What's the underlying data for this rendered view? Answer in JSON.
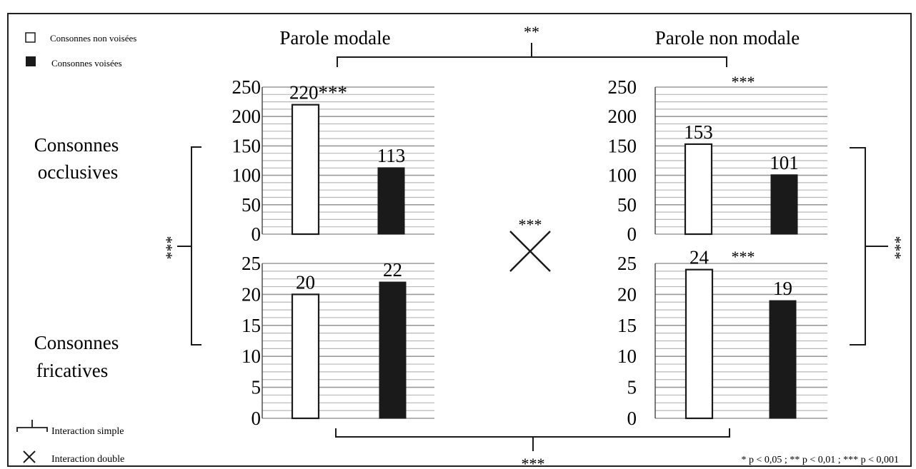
{
  "legend": {
    "unvoiced": "Consonnes non voisées",
    "voiced": "Consonnes voisées",
    "interaction_simple": "Interaction simple",
    "interaction_double": "Interaction double"
  },
  "headers": {
    "modal": "Parole modale",
    "nonmodal": "Parole non modale"
  },
  "row_labels": {
    "occlusive_line1": "Consonnes",
    "occlusive_line2": "occlusives",
    "fricative_line1": "Consonnes",
    "fricative_line2": "fricatives"
  },
  "significance": {
    "top_bracket": "**",
    "bottom_bracket": "***",
    "left_bracket": "***",
    "right_bracket": "***",
    "center_cross": "***",
    "footnote": "* p < 0,05 ; ** p < 0,01 ; *** p < 0,001"
  },
  "colors": {
    "unvoiced_fill": "#ffffff",
    "voiced_fill": "#1a1a1a",
    "grid": "#b8b8b8",
    "frame": "#222222"
  },
  "chart_data": [
    {
      "type": "bar",
      "id": "modal-occlusive",
      "categories": [
        "Consonnes non voisées",
        "Consonnes voisées"
      ],
      "values": [
        220,
        113
      ],
      "labels": [
        "220***",
        "113"
      ],
      "yticks": [
        "0",
        "50",
        "100",
        "150",
        "200",
        "250"
      ],
      "ylim": [
        0,
        250
      ]
    },
    {
      "type": "bar",
      "id": "modal-fricative",
      "categories": [
        "Consonnes non voisées",
        "Consonnes voisées"
      ],
      "values": [
        20,
        22
      ],
      "labels": [
        "20",
        "22"
      ],
      "yticks": [
        "0",
        "5",
        "10",
        "15",
        "20",
        "25"
      ],
      "ylim": [
        0,
        25
      ]
    },
    {
      "type": "bar",
      "id": "nonmodal-occlusive",
      "categories": [
        "Consonnes non voisées",
        "Consonnes voisées"
      ],
      "values": [
        153,
        101
      ],
      "labels": [
        "153",
        "101"
      ],
      "significance": "***",
      "yticks": [
        "0",
        "50",
        "100",
        "150",
        "200",
        "250"
      ],
      "ylim": [
        0,
        250
      ]
    },
    {
      "type": "bar",
      "id": "nonmodal-fricative",
      "categories": [
        "Consonnes non voisées",
        "Consonnes voisées"
      ],
      "values": [
        24,
        19
      ],
      "labels": [
        "24",
        "19"
      ],
      "significance": "***",
      "yticks": [
        "0",
        "5",
        "10",
        "15",
        "20",
        "25"
      ],
      "ylim": [
        0,
        25
      ]
    }
  ]
}
